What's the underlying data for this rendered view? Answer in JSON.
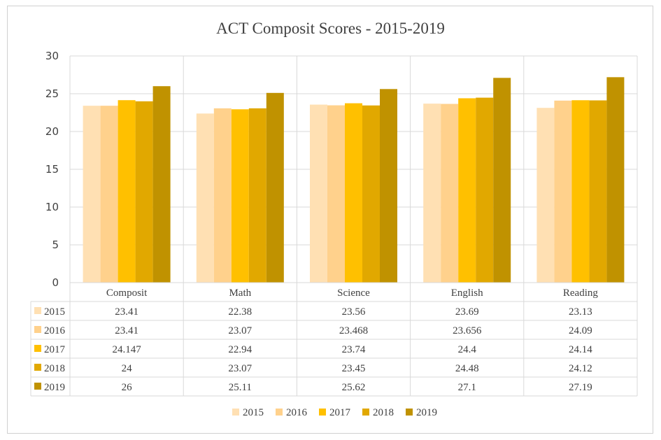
{
  "chart_data": {
    "type": "bar",
    "title": "ACT Composit Scores - 2015-2019",
    "categories": [
      "Composit",
      "Math",
      "Science",
      "English",
      "Reading"
    ],
    "series": [
      {
        "name": "2015",
        "values": [
          23.41,
          22.38,
          23.56,
          23.69,
          23.13
        ],
        "display": [
          "23.41",
          "22.38",
          "23.56",
          "23.69",
          "23.13"
        ],
        "color": "#FFE0B3"
      },
      {
        "name": "2016",
        "values": [
          23.41,
          23.07,
          23.468,
          23.656,
          24.09
        ],
        "display": [
          "23.41",
          "23.07",
          "23.468",
          "23.656",
          "24.09"
        ],
        "color": "#FFD18C"
      },
      {
        "name": "2017",
        "values": [
          24.147,
          22.94,
          23.74,
          24.4,
          24.14
        ],
        "display": [
          "24.147",
          "22.94",
          "23.74",
          "24.4",
          "24.14"
        ],
        "color": "#FFC000"
      },
      {
        "name": "2018",
        "values": [
          24,
          23.07,
          23.45,
          24.48,
          24.12
        ],
        "display": [
          "24",
          "23.07",
          "23.45",
          "24.48",
          "24.12"
        ],
        "color": "#E1A800"
      },
      {
        "name": "2019",
        "values": [
          26,
          25.11,
          25.62,
          27.1,
          27.19
        ],
        "display": [
          "26",
          "25.11",
          "25.62",
          "27.1",
          "27.19"
        ],
        "color": "#C09200"
      }
    ],
    "yticks": [
      "0",
      "5",
      "10",
      "15",
      "20",
      "25",
      "30"
    ],
    "ylim": [
      0,
      30
    ],
    "grid": true,
    "data_table": true,
    "legend_position": "bottom"
  }
}
